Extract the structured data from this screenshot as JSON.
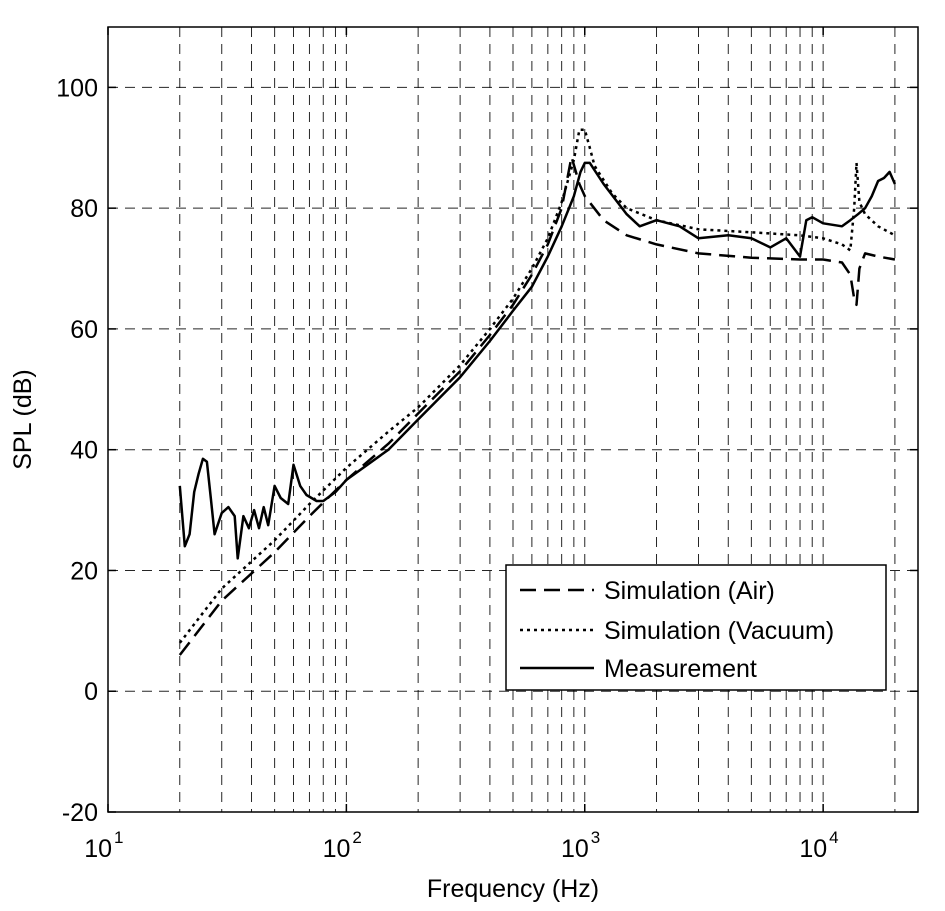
{
  "chart_data": {
    "type": "line",
    "title": "",
    "xlabel": "Frequency (Hz)",
    "ylabel": "SPL (dB)",
    "xscale": "log",
    "xlim": [
      10,
      25000
    ],
    "ylim": [
      -20,
      110
    ],
    "x_ticks": [
      {
        "value": 10,
        "base": "10",
        "exp": "1"
      },
      {
        "value": 100,
        "base": "10",
        "exp": "2"
      },
      {
        "value": 1000,
        "base": "10",
        "exp": "3"
      },
      {
        "value": 10000,
        "base": "10",
        "exp": "4"
      }
    ],
    "y_ticks": [
      -20,
      0,
      20,
      40,
      60,
      80,
      100
    ],
    "grid": true,
    "legend_position": "lower-right",
    "series": [
      {
        "name": "Simulation (Air)",
        "style": "dashed",
        "points": [
          [
            20,
            6
          ],
          [
            30,
            15
          ],
          [
            50,
            23
          ],
          [
            70,
            29
          ],
          [
            100,
            35
          ],
          [
            150,
            41
          ],
          [
            200,
            46
          ],
          [
            300,
            53
          ],
          [
            400,
            59
          ],
          [
            500,
            64
          ],
          [
            600,
            69
          ],
          [
            700,
            74
          ],
          [
            800,
            80
          ],
          [
            880,
            88.5
          ],
          [
            950,
            84
          ],
          [
            1000,
            82
          ],
          [
            1200,
            78
          ],
          [
            1500,
            75.5
          ],
          [
            2000,
            74
          ],
          [
            3000,
            72.5
          ],
          [
            5000,
            71.8
          ],
          [
            8000,
            71.5
          ],
          [
            10000,
            71.5
          ],
          [
            12000,
            71
          ],
          [
            13000,
            69
          ],
          [
            13500,
            65
          ],
          [
            13800,
            64
          ],
          [
            14200,
            70
          ],
          [
            15000,
            72.5
          ],
          [
            17000,
            72
          ],
          [
            20000,
            71.5
          ]
        ]
      },
      {
        "name": "Simulation (Vacuum)",
        "style": "dotted",
        "points": [
          [
            20,
            8
          ],
          [
            30,
            17
          ],
          [
            50,
            25
          ],
          [
            70,
            31
          ],
          [
            100,
            37
          ],
          [
            150,
            43
          ],
          [
            200,
            47
          ],
          [
            300,
            54
          ],
          [
            400,
            60
          ],
          [
            500,
            65
          ],
          [
            600,
            70
          ],
          [
            700,
            75
          ],
          [
            800,
            81
          ],
          [
            900,
            88
          ],
          [
            950,
            93
          ],
          [
            1000,
            93
          ],
          [
            1050,
            90
          ],
          [
            1100,
            87
          ],
          [
            1300,
            82.5
          ],
          [
            1500,
            80
          ],
          [
            2000,
            78
          ],
          [
            3000,
            76.5
          ],
          [
            5000,
            76
          ],
          [
            8000,
            75.5
          ],
          [
            10000,
            75
          ],
          [
            12000,
            74
          ],
          [
            13000,
            73
          ],
          [
            13500,
            80
          ],
          [
            13800,
            87.5
          ],
          [
            14200,
            81
          ],
          [
            15000,
            79
          ],
          [
            17000,
            77
          ],
          [
            20000,
            75.5
          ]
        ]
      },
      {
        "name": "Measurement",
        "style": "solid",
        "points": [
          [
            20,
            34
          ],
          [
            21,
            24
          ],
          [
            22,
            26
          ],
          [
            23,
            33
          ],
          [
            24,
            36
          ],
          [
            25,
            38.5
          ],
          [
            26,
            38
          ],
          [
            27,
            32
          ],
          [
            28,
            26
          ],
          [
            30,
            29.5
          ],
          [
            32,
            30.5
          ],
          [
            34,
            29
          ],
          [
            35,
            22
          ],
          [
            37,
            29
          ],
          [
            39,
            27
          ],
          [
            41,
            30
          ],
          [
            43,
            27
          ],
          [
            45,
            30.5
          ],
          [
            47,
            27.5
          ],
          [
            50,
            34
          ],
          [
            53,
            32
          ],
          [
            57,
            31
          ],
          [
            60,
            37.5
          ],
          [
            64,
            34
          ],
          [
            68,
            32.5
          ],
          [
            75,
            31.5
          ],
          [
            80,
            31.5
          ],
          [
            90,
            33
          ],
          [
            100,
            35
          ],
          [
            150,
            40
          ],
          [
            200,
            45
          ],
          [
            300,
            52
          ],
          [
            400,
            58
          ],
          [
            500,
            63
          ],
          [
            600,
            67
          ],
          [
            700,
            72
          ],
          [
            800,
            77
          ],
          [
            900,
            82
          ],
          [
            960,
            86
          ],
          [
            1000,
            87.5
          ],
          [
            1050,
            87.5
          ],
          [
            1200,
            84
          ],
          [
            1500,
            79
          ],
          [
            1700,
            77
          ],
          [
            2000,
            78
          ],
          [
            2500,
            77
          ],
          [
            3000,
            75
          ],
          [
            4000,
            75.5
          ],
          [
            5000,
            75
          ],
          [
            6000,
            73.5
          ],
          [
            7000,
            75
          ],
          [
            8000,
            72
          ],
          [
            8500,
            78
          ],
          [
            9000,
            78.5
          ],
          [
            10000,
            77.5
          ],
          [
            12000,
            77
          ],
          [
            13000,
            78
          ],
          [
            14000,
            79
          ],
          [
            15000,
            80
          ],
          [
            16000,
            82
          ],
          [
            17000,
            84.5
          ],
          [
            18000,
            85
          ],
          [
            19000,
            86
          ],
          [
            20000,
            84
          ]
        ]
      }
    ]
  }
}
